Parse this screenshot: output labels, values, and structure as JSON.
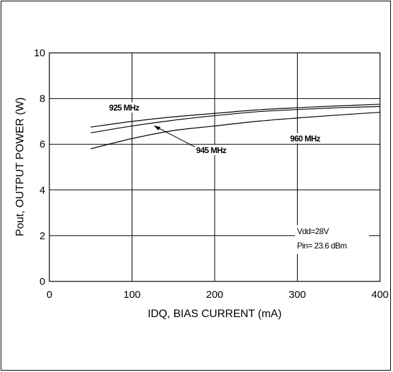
{
  "chart_data": {
    "type": "line",
    "xlabel": "IDQ, BIAS CURRENT (mA)",
    "ylabel": "Pout, OUTPUT POWER (W)",
    "xlim": [
      0,
      400
    ],
    "ylim": [
      0,
      10
    ],
    "xticks": [
      "0",
      "100",
      "200",
      "300",
      "400"
    ],
    "yticks": [
      "0",
      "2",
      "4",
      "6",
      "8",
      "10"
    ],
    "grid": true,
    "series": [
      {
        "name": "925 MHz",
        "x": [
          50,
          100,
          150,
          200,
          250,
          300,
          350,
          400
        ],
        "y": [
          6.75,
          7.0,
          7.2,
          7.35,
          7.5,
          7.6,
          7.68,
          7.75
        ]
      },
      {
        "name": "945 MHz",
        "x": [
          50,
          100,
          150,
          200,
          250,
          300,
          350,
          400
        ],
        "y": [
          6.5,
          6.8,
          7.05,
          7.25,
          7.42,
          7.52,
          7.6,
          7.65
        ]
      },
      {
        "name": "960 MHz",
        "x": [
          50,
          100,
          150,
          200,
          250,
          300,
          350,
          400
        ],
        "y": [
          5.8,
          6.25,
          6.6,
          6.8,
          7.0,
          7.15,
          7.28,
          7.4
        ]
      }
    ],
    "annotations": [
      "Vdd=28V",
      "Pin= 23.6 dBm"
    ]
  }
}
